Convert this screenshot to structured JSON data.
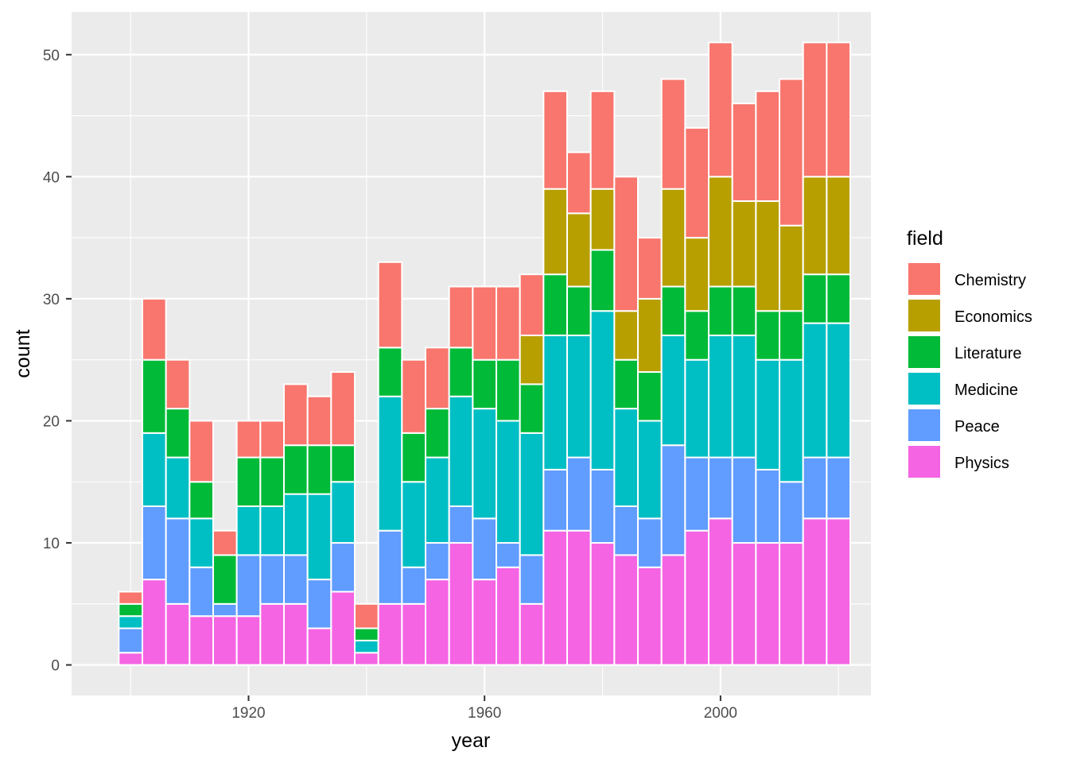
{
  "chart_data": {
    "type": "bar",
    "stacked": true,
    "xlabel": "year",
    "ylabel": "count",
    "xlim": [
      1890,
      2025.5
    ],
    "ylim": [
      -2.5,
      53.5
    ],
    "xticks": [
      1920,
      1960,
      2000
    ],
    "yticks": [
      0,
      10,
      20,
      30,
      40,
      50
    ],
    "bin_width": 4,
    "grid": true,
    "legend": {
      "title": "field",
      "position": "right"
    },
    "categories": [
      1900,
      1904,
      1908,
      1912,
      1916,
      1920,
      1924,
      1928,
      1932,
      1936,
      1940,
      1944,
      1948,
      1952,
      1956,
      1960,
      1964,
      1968,
      1972,
      1976,
      1980,
      1984,
      1988,
      1992,
      1996,
      2000,
      2004,
      2008,
      2012,
      2016,
      2020
    ],
    "series": [
      {
        "name": "Physics",
        "color": "#F564E3",
        "values": [
          1,
          7,
          5,
          4,
          4,
          4,
          5,
          5,
          3,
          6,
          1,
          5,
          5,
          7,
          10,
          7,
          8,
          5,
          11,
          11,
          10,
          9,
          8,
          9,
          11,
          12,
          10,
          10,
          10,
          12,
          12
        ]
      },
      {
        "name": "Peace",
        "color": "#619CFF",
        "values": [
          2,
          6,
          7,
          4,
          1,
          5,
          4,
          4,
          4,
          4,
          0,
          6,
          3,
          3,
          3,
          5,
          2,
          4,
          5,
          6,
          6,
          4,
          4,
          9,
          6,
          5,
          7,
          6,
          5,
          5,
          5
        ]
      },
      {
        "name": "Medicine",
        "color": "#00BFC4",
        "values": [
          1,
          6,
          5,
          4,
          0,
          4,
          4,
          5,
          7,
          5,
          1,
          11,
          7,
          7,
          9,
          9,
          10,
          10,
          11,
          10,
          13,
          8,
          8,
          9,
          8,
          10,
          10,
          9,
          10,
          11,
          11
        ]
      },
      {
        "name": "Literature",
        "color": "#00BA38",
        "values": [
          1,
          6,
          4,
          3,
          4,
          4,
          4,
          4,
          4,
          3,
          1,
          4,
          4,
          4,
          4,
          4,
          5,
          4,
          5,
          4,
          5,
          4,
          4,
          4,
          4,
          4,
          4,
          4,
          4,
          4,
          4
        ]
      },
      {
        "name": "Economics",
        "color": "#B79F00",
        "values": [
          0,
          0,
          0,
          0,
          0,
          0,
          0,
          0,
          0,
          0,
          0,
          0,
          0,
          0,
          0,
          0,
          0,
          4,
          7,
          6,
          5,
          4,
          6,
          8,
          6,
          9,
          7,
          9,
          7,
          8,
          8
        ]
      },
      {
        "name": "Chemistry",
        "color": "#F8766D",
        "values": [
          1,
          5,
          4,
          5,
          2,
          3,
          3,
          5,
          4,
          6,
          2,
          7,
          6,
          5,
          5,
          6,
          6,
          5,
          8,
          5,
          8,
          11,
          5,
          9,
          9,
          11,
          8,
          9,
          12,
          11,
          11
        ]
      }
    ]
  }
}
